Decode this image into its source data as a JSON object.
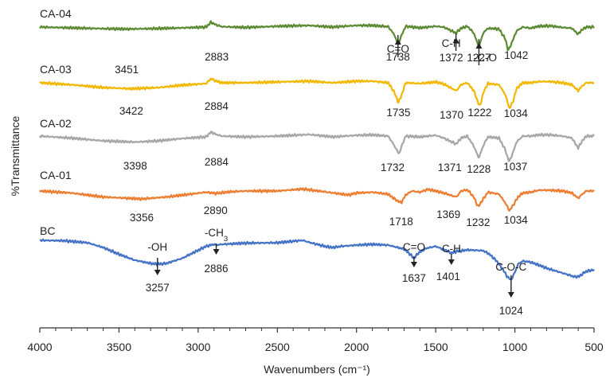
{
  "chart_data": {
    "type": "line",
    "title": "",
    "xlabel": "Wavenumbers (cm⁻¹)",
    "ylabel": "%Transmittance",
    "xlim": [
      4000,
      500
    ],
    "x_reversed": true,
    "x_ticks": [
      4000,
      3500,
      3000,
      2500,
      2000,
      1500,
      1000,
      500
    ],
    "grid": false,
    "legend": "none",
    "series": [
      {
        "name": "CA-04",
        "color": "#5b8a32",
        "points": [
          [
            4000,
            0
          ],
          [
            3800,
            -0.2
          ],
          [
            3600,
            -0.4
          ],
          [
            3451,
            -0.5
          ],
          [
            3300,
            -0.4
          ],
          [
            3100,
            -0.2
          ],
          [
            2950,
            0
          ],
          [
            2920,
            1.2
          ],
          [
            2883,
            0.5
          ],
          [
            2850,
            0.1
          ],
          [
            2700,
            -0.1
          ],
          [
            2500,
            0.2
          ],
          [
            2300,
            0.4
          ],
          [
            2150,
            0
          ],
          [
            2000,
            0.4
          ],
          [
            1900,
            0.4
          ],
          [
            1800,
            0.1
          ],
          [
            1760,
            -2
          ],
          [
            1738,
            -4.5
          ],
          [
            1715,
            -2
          ],
          [
            1690,
            0.2
          ],
          [
            1600,
            -0.2
          ],
          [
            1500,
            0.2
          ],
          [
            1450,
            0
          ],
          [
            1372,
            -1.5
          ],
          [
            1340,
            -0.3
          ],
          [
            1300,
            0.2
          ],
          [
            1260,
            -1.5
          ],
          [
            1227,
            -5
          ],
          [
            1200,
            -1.5
          ],
          [
            1170,
            -0.3
          ],
          [
            1100,
            -0.5
          ],
          [
            1060,
            -3
          ],
          [
            1042,
            -6
          ],
          [
            1020,
            -4
          ],
          [
            990,
            -1
          ],
          [
            950,
            0
          ],
          [
            900,
            -0.3
          ],
          [
            850,
            0.2
          ],
          [
            780,
            0.3
          ],
          [
            700,
            -0.1
          ],
          [
            640,
            -0.3
          ],
          [
            600,
            -1.8
          ],
          [
            580,
            -0.8
          ],
          [
            550,
            0
          ],
          [
            500,
            0
          ]
        ]
      },
      {
        "name": "CA-03",
        "color": "#f2b800",
        "points": [
          [
            4000,
            0
          ],
          [
            3800,
            -0.5
          ],
          [
            3600,
            -1.2
          ],
          [
            3422,
            -1.5
          ],
          [
            3250,
            -1.2
          ],
          [
            3100,
            -0.6
          ],
          [
            2950,
            -0.2
          ],
          [
            2920,
            1
          ],
          [
            2884,
            0.4
          ],
          [
            2850,
            0
          ],
          [
            2700,
            0
          ],
          [
            2500,
            0.2
          ],
          [
            2300,
            0.4
          ],
          [
            2150,
            0
          ],
          [
            2000,
            0.4
          ],
          [
            1900,
            0.4
          ],
          [
            1800,
            0
          ],
          [
            1760,
            -2.5
          ],
          [
            1735,
            -5
          ],
          [
            1710,
            -2.5
          ],
          [
            1690,
            0
          ],
          [
            1600,
            -0.2
          ],
          [
            1500,
            0.2
          ],
          [
            1450,
            -0.3
          ],
          [
            1370,
            -2
          ],
          [
            1340,
            -0.5
          ],
          [
            1300,
            0
          ],
          [
            1260,
            -2
          ],
          [
            1222,
            -6
          ],
          [
            1195,
            -2
          ],
          [
            1170,
            -0.2
          ],
          [
            1100,
            -0.5
          ],
          [
            1060,
            -3
          ],
          [
            1034,
            -6.5
          ],
          [
            1010,
            -4.5
          ],
          [
            990,
            -1.5
          ],
          [
            950,
            0
          ],
          [
            900,
            0
          ],
          [
            850,
            0.3
          ],
          [
            780,
            0.3
          ],
          [
            700,
            0
          ],
          [
            640,
            -0.5
          ],
          [
            600,
            -2
          ],
          [
            580,
            -1
          ],
          [
            550,
            0
          ],
          [
            500,
            0
          ]
        ]
      },
      {
        "name": "CA-02",
        "color": "#a6a6a6",
        "points": [
          [
            4000,
            0
          ],
          [
            3800,
            -0.5
          ],
          [
            3600,
            -1.2
          ],
          [
            3398,
            -1.5
          ],
          [
            3250,
            -1.2
          ],
          [
            3100,
            -0.6
          ],
          [
            2950,
            -0.2
          ],
          [
            2920,
            1
          ],
          [
            2884,
            0.4
          ],
          [
            2850,
            0
          ],
          [
            2700,
            -0.2
          ],
          [
            2500,
            0
          ],
          [
            2300,
            0.4
          ],
          [
            2150,
            -0.2
          ],
          [
            2000,
            0.2
          ],
          [
            1900,
            0.3
          ],
          [
            1800,
            0
          ],
          [
            1760,
            -2.5
          ],
          [
            1732,
            -4.5
          ],
          [
            1710,
            -2
          ],
          [
            1690,
            0
          ],
          [
            1600,
            -0.2
          ],
          [
            1500,
            0.2
          ],
          [
            1450,
            -0.5
          ],
          [
            1371,
            -2
          ],
          [
            1340,
            -0.5
          ],
          [
            1300,
            0
          ],
          [
            1260,
            -2.5
          ],
          [
            1228,
            -5.5
          ],
          [
            1195,
            -2
          ],
          [
            1170,
            -0.2
          ],
          [
            1100,
            -0.5
          ],
          [
            1060,
            -3.5
          ],
          [
            1037,
            -6.5
          ],
          [
            1015,
            -4.5
          ],
          [
            990,
            -1.5
          ],
          [
            950,
            0
          ],
          [
            900,
            0
          ],
          [
            850,
            0.3
          ],
          [
            780,
            0.3
          ],
          [
            700,
            0
          ],
          [
            640,
            -0.5
          ],
          [
            600,
            -3
          ],
          [
            580,
            -1.5
          ],
          [
            550,
            0
          ],
          [
            500,
            0
          ]
        ]
      },
      {
        "name": "CA-01",
        "color": "#ed7d31",
        "points": [
          [
            4000,
            0
          ],
          [
            3800,
            -0.5
          ],
          [
            3600,
            -1.5
          ],
          [
            3356,
            -2
          ],
          [
            3200,
            -1.5
          ],
          [
            3050,
            -0.8
          ],
          [
            2950,
            -0.3
          ],
          [
            2890,
            -0.6
          ],
          [
            2800,
            -0.2
          ],
          [
            2700,
            0
          ],
          [
            2500,
            0
          ],
          [
            2340,
            0.5
          ],
          [
            2200,
            -0.2
          ],
          [
            2050,
            -1
          ],
          [
            2000,
            -0.5
          ],
          [
            1900,
            -0.3
          ],
          [
            1800,
            -0.8
          ],
          [
            1760,
            -2
          ],
          [
            1718,
            -3
          ],
          [
            1690,
            -1
          ],
          [
            1650,
            0
          ],
          [
            1600,
            -0.3
          ],
          [
            1550,
            0.4
          ],
          [
            1500,
            0
          ],
          [
            1450,
            -0.5
          ],
          [
            1369,
            -1.5
          ],
          [
            1340,
            0
          ],
          [
            1300,
            0.3
          ],
          [
            1260,
            -1.5
          ],
          [
            1232,
            -4
          ],
          [
            1200,
            -2
          ],
          [
            1170,
            -0.3
          ],
          [
            1100,
            -0.8
          ],
          [
            1060,
            -3
          ],
          [
            1034,
            -5
          ],
          [
            1010,
            -3.5
          ],
          [
            980,
            -1.5
          ],
          [
            950,
            -0.5
          ],
          [
            900,
            -0.3
          ],
          [
            850,
            0.2
          ],
          [
            780,
            0.2
          ],
          [
            700,
            0
          ],
          [
            640,
            -0.5
          ],
          [
            600,
            -1.8
          ],
          [
            580,
            -1
          ],
          [
            550,
            0
          ],
          [
            500,
            0
          ]
        ]
      },
      {
        "name": "BC",
        "color": "#4472c4",
        "points": [
          [
            4000,
            0
          ],
          [
            3850,
            -0.1
          ],
          [
            3700,
            -0.6
          ],
          [
            3600,
            -1.8
          ],
          [
            3500,
            -3.5
          ],
          [
            3400,
            -5
          ],
          [
            3300,
            -5.8
          ],
          [
            3257,
            -6
          ],
          [
            3200,
            -5.8
          ],
          [
            3100,
            -4.5
          ],
          [
            3000,
            -2.5
          ],
          [
            2950,
            -1.5
          ],
          [
            2900,
            -1
          ],
          [
            2886,
            -1.2
          ],
          [
            2850,
            -1
          ],
          [
            2700,
            -0.7
          ],
          [
            2500,
            -0.6
          ],
          [
            2340,
            0
          ],
          [
            2300,
            -0.5
          ],
          [
            2200,
            -1.5
          ],
          [
            2150,
            -1.8
          ],
          [
            2100,
            -1.5
          ],
          [
            2000,
            -1.2
          ],
          [
            1900,
            -1
          ],
          [
            1800,
            -1.2
          ],
          [
            1700,
            -2.2
          ],
          [
            1670,
            -3.2
          ],
          [
            1637,
            -4.5
          ],
          [
            1610,
            -3.2
          ],
          [
            1560,
            -2
          ],
          [
            1500,
            -1.5
          ],
          [
            1470,
            -2
          ],
          [
            1430,
            -2.6
          ],
          [
            1401,
            -3.2
          ],
          [
            1370,
            -2.8
          ],
          [
            1330,
            -2.6
          ],
          [
            1300,
            -2.4
          ],
          [
            1250,
            -2.5
          ],
          [
            1200,
            -2.6
          ],
          [
            1160,
            -3.5
          ],
          [
            1120,
            -5
          ],
          [
            1080,
            -7
          ],
          [
            1050,
            -9
          ],
          [
            1024,
            -10
          ],
          [
            1000,
            -8
          ],
          [
            980,
            -6
          ],
          [
            950,
            -5.2
          ],
          [
            900,
            -5.5
          ],
          [
            850,
            -6.2
          ],
          [
            800,
            -7
          ],
          [
            700,
            -8.2
          ],
          [
            620,
            -9.2
          ],
          [
            590,
            -9
          ],
          [
            560,
            -8
          ],
          [
            520,
            -7.5
          ],
          [
            500,
            -7.5
          ]
        ]
      }
    ],
    "peak_labels": [
      {
        "series": "CA-04",
        "x": 3451,
        "text": "3451"
      },
      {
        "series": "CA-04",
        "x": 2883,
        "text": "2883"
      },
      {
        "series": "CA-04",
        "x": 1738,
        "text": "1738"
      },
      {
        "series": "CA-04",
        "x": 1372,
        "text": "1372"
      },
      {
        "series": "CA-04",
        "x": 1227,
        "text": "1227"
      },
      {
        "series": "CA-04",
        "x": 1042,
        "text": "1042"
      },
      {
        "series": "CA-03",
        "x": 3422,
        "text": "3422"
      },
      {
        "series": "CA-03",
        "x": 2884,
        "text": "2884"
      },
      {
        "series": "CA-03",
        "x": 1735,
        "text": "1735"
      },
      {
        "series": "CA-03",
        "x": 1370,
        "text": "1370"
      },
      {
        "series": "CA-03",
        "x": 1222,
        "text": "1222"
      },
      {
        "series": "CA-03",
        "x": 1034,
        "text": "1034"
      },
      {
        "series": "CA-02",
        "x": 3398,
        "text": "3398"
      },
      {
        "series": "CA-02",
        "x": 2884,
        "text": "2884"
      },
      {
        "series": "CA-02",
        "x": 1732,
        "text": "1732"
      },
      {
        "series": "CA-02",
        "x": 1371,
        "text": "1371"
      },
      {
        "series": "CA-02",
        "x": 1228,
        "text": "1228"
      },
      {
        "series": "CA-02",
        "x": 1037,
        "text": "1037"
      },
      {
        "series": "CA-01",
        "x": 3356,
        "text": "3356"
      },
      {
        "series": "CA-01",
        "x": 2890,
        "text": "2890"
      },
      {
        "series": "CA-01",
        "x": 1718,
        "text": "1718"
      },
      {
        "series": "CA-01",
        "x": 1369,
        "text": "1369"
      },
      {
        "series": "CA-01",
        "x": 1232,
        "text": "1232"
      },
      {
        "series": "CA-01",
        "x": 1034,
        "text": "1034"
      },
      {
        "series": "BC",
        "x": 3257,
        "text": "3257"
      },
      {
        "series": "BC",
        "x": 2886,
        "text": "2886"
      },
      {
        "series": "BC",
        "x": 1637,
        "text": "1637"
      },
      {
        "series": "BC",
        "x": 1401,
        "text": "1401"
      },
      {
        "series": "BC",
        "x": 1024,
        "text": "1024"
      }
    ],
    "group_annotations": [
      {
        "series": "CA-04",
        "x": 1738,
        "text": "C=O"
      },
      {
        "series": "CA-04",
        "x": 1372,
        "text": "C-H"
      },
      {
        "series": "CA-04",
        "x": 1227,
        "text": "-C-O"
      },
      {
        "series": "BC",
        "x": 3257,
        "text": "-OH"
      },
      {
        "series": "BC",
        "x": 2886,
        "text": "-CH",
        "subscript": "3"
      },
      {
        "series": "BC",
        "x": 1637,
        "text": "C=O"
      },
      {
        "series": "BC",
        "x": 1401,
        "text": "C-H"
      },
      {
        "series": "BC",
        "x": 1024,
        "text": "C-O-C"
      }
    ]
  }
}
